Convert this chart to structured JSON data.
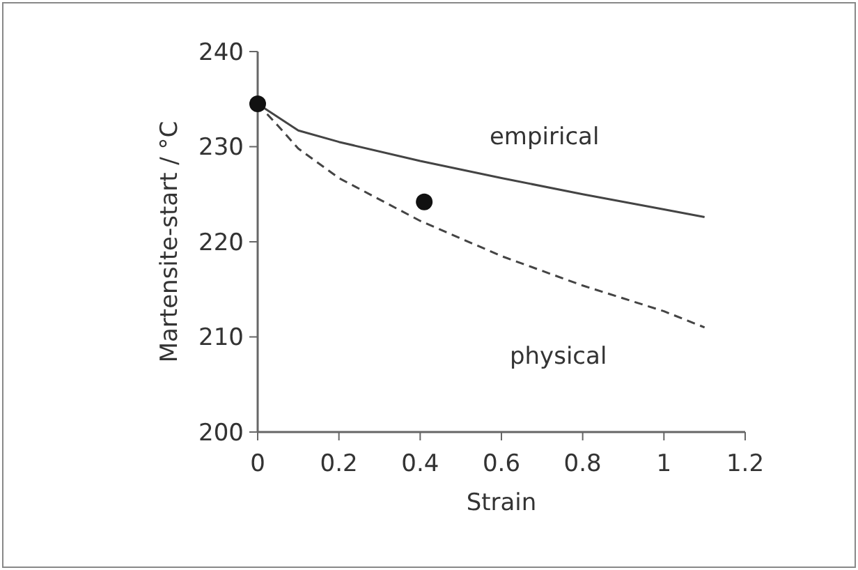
{
  "chart_data": {
    "type": "line",
    "xlabel": "Strain",
    "ylabel": "Martensite-start  / °C",
    "xlim": [
      0,
      1.2
    ],
    "xticks": [
      0,
      0.2,
      0.4,
      0.6,
      0.8,
      1,
      1.2
    ],
    "ylim": [
      200,
      240
    ],
    "yticks": [
      200,
      210,
      220,
      230,
      240
    ],
    "grid": false,
    "series": [
      {
        "color": "#444444",
        "line_style": "solid",
        "x": [
          0,
          0.1,
          0.2,
          0.4,
          0.6,
          0.8,
          1.0,
          1.1
        ],
        "values": [
          234.5,
          231.7,
          230.5,
          228.5,
          226.7,
          225,
          223.4,
          222.6
        ]
      },
      {
        "color": "#444444",
        "line_style": "dashed",
        "x": [
          0,
          0.05,
          0.1,
          0.2,
          0.4,
          0.6,
          0.8,
          1.0,
          1.1
        ],
        "values": [
          234.5,
          232.2,
          229.8,
          226.7,
          222.2,
          218.5,
          215.4,
          212.7,
          211
        ]
      },
      {
        "type": "scatter",
        "color": "#111111",
        "marker": "circle",
        "x": [
          0,
          0.41
        ],
        "values": [
          234.5,
          224.2
        ]
      }
    ],
    "annotations": [
      "empirical",
      "physical"
    ]
  }
}
